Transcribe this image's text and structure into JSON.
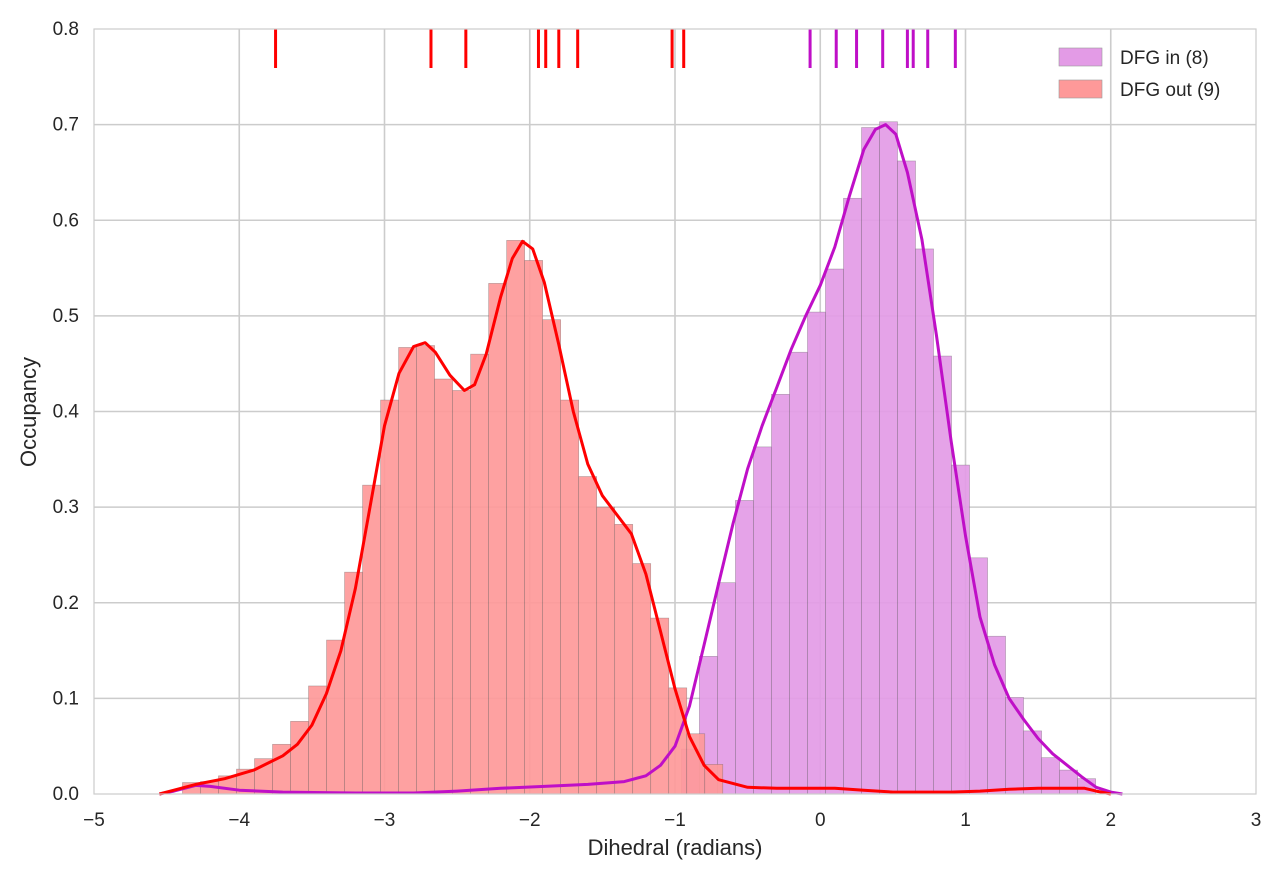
{
  "chart_data": {
    "type": "histogram",
    "xlabel": "Dihedral (radians)",
    "ylabel": "Occupancy",
    "xlim": [
      -5,
      3
    ],
    "ylim": [
      0,
      0.8
    ],
    "x_ticks": [
      -5,
      -4,
      -3,
      -2,
      -1,
      0,
      1,
      2,
      3
    ],
    "x_tick_labels": [
      "−5",
      "−4",
      "−3",
      "−2",
      "−1",
      "0",
      "1",
      "2",
      "3"
    ],
    "y_ticks": [
      0,
      0.1,
      0.2,
      0.3,
      0.4,
      0.5,
      0.6,
      0.7,
      0.8
    ],
    "y_tick_labels": [
      "0.0",
      "0.1",
      "0.2",
      "0.3",
      "0.4",
      "0.5",
      "0.6",
      "0.7",
      "0.8"
    ],
    "grid": true,
    "legend_position": "top-right",
    "series": [
      {
        "name": "DFG in (8)",
        "bar_color": "#e39be6",
        "line_color": "#bf0fc7",
        "bins": [
          [
            -0.956,
            -0.832,
            0.047
          ],
          [
            -0.832,
            -0.708,
            0.144
          ],
          [
            -0.708,
            -0.584,
            0.221
          ],
          [
            -0.584,
            -0.46,
            0.307
          ],
          [
            -0.46,
            -0.336,
            0.363
          ],
          [
            -0.336,
            -0.212,
            0.418
          ],
          [
            -0.212,
            -0.088,
            0.462
          ],
          [
            -0.088,
            0.036,
            0.504
          ],
          [
            0.036,
            0.16,
            0.549
          ],
          [
            0.16,
            0.284,
            0.623
          ],
          [
            0.284,
            0.408,
            0.697
          ],
          [
            0.408,
            0.532,
            0.703
          ],
          [
            0.532,
            0.656,
            0.662
          ],
          [
            0.656,
            0.78,
            0.57
          ],
          [
            0.78,
            0.904,
            0.458
          ],
          [
            0.904,
            1.028,
            0.344
          ],
          [
            1.028,
            1.152,
            0.247
          ],
          [
            1.152,
            1.276,
            0.165
          ],
          [
            1.276,
            1.4,
            0.101
          ],
          [
            1.4,
            1.524,
            0.066
          ],
          [
            1.524,
            1.648,
            0.038
          ],
          [
            1.648,
            1.772,
            0.025
          ],
          [
            1.772,
            1.896,
            0.016
          ]
        ],
        "kde": [
          [
            -4.55,
            0.0
          ],
          [
            -4.45,
            0.003
          ],
          [
            -4.3,
            0.009
          ],
          [
            -4.2,
            0.008
          ],
          [
            -4.0,
            0.004
          ],
          [
            -3.7,
            0.002
          ],
          [
            -3.2,
            0.001
          ],
          [
            -2.8,
            0.001
          ],
          [
            -2.5,
            0.003
          ],
          [
            -2.2,
            0.006
          ],
          [
            -1.9,
            0.008
          ],
          [
            -1.6,
            0.01
          ],
          [
            -1.35,
            0.013
          ],
          [
            -1.2,
            0.019
          ],
          [
            -1.1,
            0.03
          ],
          [
            -1.0,
            0.05
          ],
          [
            -0.9,
            0.092
          ],
          [
            -0.8,
            0.156
          ],
          [
            -0.7,
            0.22
          ],
          [
            -0.6,
            0.283
          ],
          [
            -0.5,
            0.34
          ],
          [
            -0.4,
            0.385
          ],
          [
            -0.3,
            0.425
          ],
          [
            -0.2,
            0.465
          ],
          [
            -0.1,
            0.5
          ],
          [
            0.0,
            0.532
          ],
          [
            0.1,
            0.572
          ],
          [
            0.2,
            0.625
          ],
          [
            0.3,
            0.674
          ],
          [
            0.38,
            0.695
          ],
          [
            0.45,
            0.7
          ],
          [
            0.52,
            0.69
          ],
          [
            0.6,
            0.65
          ],
          [
            0.7,
            0.58
          ],
          [
            0.8,
            0.48
          ],
          [
            0.9,
            0.37
          ],
          [
            1.0,
            0.27
          ],
          [
            1.1,
            0.185
          ],
          [
            1.2,
            0.135
          ],
          [
            1.3,
            0.1
          ],
          [
            1.4,
            0.078
          ],
          [
            1.5,
            0.058
          ],
          [
            1.6,
            0.042
          ],
          [
            1.7,
            0.03
          ],
          [
            1.8,
            0.018
          ],
          [
            1.9,
            0.007
          ],
          [
            2.0,
            0.002
          ],
          [
            2.08,
            0.0
          ]
        ],
        "rug": [
          -0.07,
          0.11,
          0.25,
          0.43,
          0.6,
          0.64,
          0.74,
          0.93
        ]
      },
      {
        "name": "DFG out (9)",
        "bar_color": "#fe9999",
        "line_color": "#ff0000",
        "bins": [
          [
            -4.391,
            -4.267,
            0.012
          ],
          [
            -4.267,
            -4.143,
            0.013
          ],
          [
            -4.143,
            -4.019,
            0.019
          ],
          [
            -4.019,
            -3.895,
            0.026
          ],
          [
            -3.895,
            -3.771,
            0.037
          ],
          [
            -3.771,
            -3.647,
            0.052
          ],
          [
            -3.647,
            -3.523,
            0.076
          ],
          [
            -3.523,
            -3.399,
            0.113
          ],
          [
            -3.399,
            -3.275,
            0.161
          ],
          [
            -3.275,
            -3.151,
            0.232
          ],
          [
            -3.151,
            -3.027,
            0.323
          ],
          [
            -3.027,
            -2.903,
            0.412
          ],
          [
            -2.903,
            -2.779,
            0.467
          ],
          [
            -2.779,
            -2.655,
            0.469
          ],
          [
            -2.655,
            -2.531,
            0.434
          ],
          [
            -2.531,
            -2.407,
            0.422
          ],
          [
            -2.407,
            -2.283,
            0.46
          ],
          [
            -2.283,
            -2.159,
            0.534
          ],
          [
            -2.159,
            -2.035,
            0.579
          ],
          [
            -2.035,
            -1.911,
            0.558
          ],
          [
            -1.911,
            -1.787,
            0.496
          ],
          [
            -1.787,
            -1.663,
            0.412
          ],
          [
            -1.663,
            -1.539,
            0.332
          ],
          [
            -1.539,
            -1.415,
            0.3
          ],
          [
            -1.415,
            -1.291,
            0.282
          ],
          [
            -1.291,
            -1.167,
            0.241
          ],
          [
            -1.167,
            -1.043,
            0.184
          ],
          [
            -1.043,
            -0.919,
            0.111
          ],
          [
            -0.919,
            -0.795,
            0.063
          ],
          [
            -0.795,
            -0.671,
            0.031
          ]
        ],
        "kde": [
          [
            -4.55,
            0.0
          ],
          [
            -4.45,
            0.004
          ],
          [
            -4.3,
            0.01
          ],
          [
            -4.1,
            0.016
          ],
          [
            -3.9,
            0.025
          ],
          [
            -3.7,
            0.04
          ],
          [
            -3.6,
            0.052
          ],
          [
            -3.5,
            0.072
          ],
          [
            -3.4,
            0.105
          ],
          [
            -3.3,
            0.15
          ],
          [
            -3.2,
            0.215
          ],
          [
            -3.1,
            0.3
          ],
          [
            -3.0,
            0.385
          ],
          [
            -2.9,
            0.44
          ],
          [
            -2.8,
            0.468
          ],
          [
            -2.72,
            0.472
          ],
          [
            -2.65,
            0.462
          ],
          [
            -2.55,
            0.438
          ],
          [
            -2.45,
            0.422
          ],
          [
            -2.38,
            0.428
          ],
          [
            -2.3,
            0.46
          ],
          [
            -2.2,
            0.52
          ],
          [
            -2.12,
            0.56
          ],
          [
            -2.05,
            0.578
          ],
          [
            -1.98,
            0.57
          ],
          [
            -1.9,
            0.535
          ],
          [
            -1.8,
            0.47
          ],
          [
            -1.7,
            0.4
          ],
          [
            -1.6,
            0.345
          ],
          [
            -1.5,
            0.312
          ],
          [
            -1.4,
            0.292
          ],
          [
            -1.3,
            0.272
          ],
          [
            -1.2,
            0.23
          ],
          [
            -1.1,
            0.17
          ],
          [
            -1.0,
            0.11
          ],
          [
            -0.9,
            0.06
          ],
          [
            -0.8,
            0.03
          ],
          [
            -0.7,
            0.015
          ],
          [
            -0.5,
            0.007
          ],
          [
            -0.3,
            0.006
          ],
          [
            -0.1,
            0.006
          ],
          [
            0.1,
            0.006
          ],
          [
            0.3,
            0.004
          ],
          [
            0.5,
            0.002
          ],
          [
            0.7,
            0.002
          ],
          [
            0.9,
            0.002
          ],
          [
            1.1,
            0.003
          ],
          [
            1.3,
            0.005
          ],
          [
            1.5,
            0.006
          ],
          [
            1.7,
            0.006
          ],
          [
            1.82,
            0.006
          ],
          [
            1.9,
            0.003
          ],
          [
            2.0,
            0.0
          ]
        ],
        "rug": [
          -3.75,
          -2.68,
          -2.44,
          -1.94,
          -1.89,
          -1.8,
          -1.67,
          -1.02,
          -0.94
        ]
      }
    ]
  }
}
